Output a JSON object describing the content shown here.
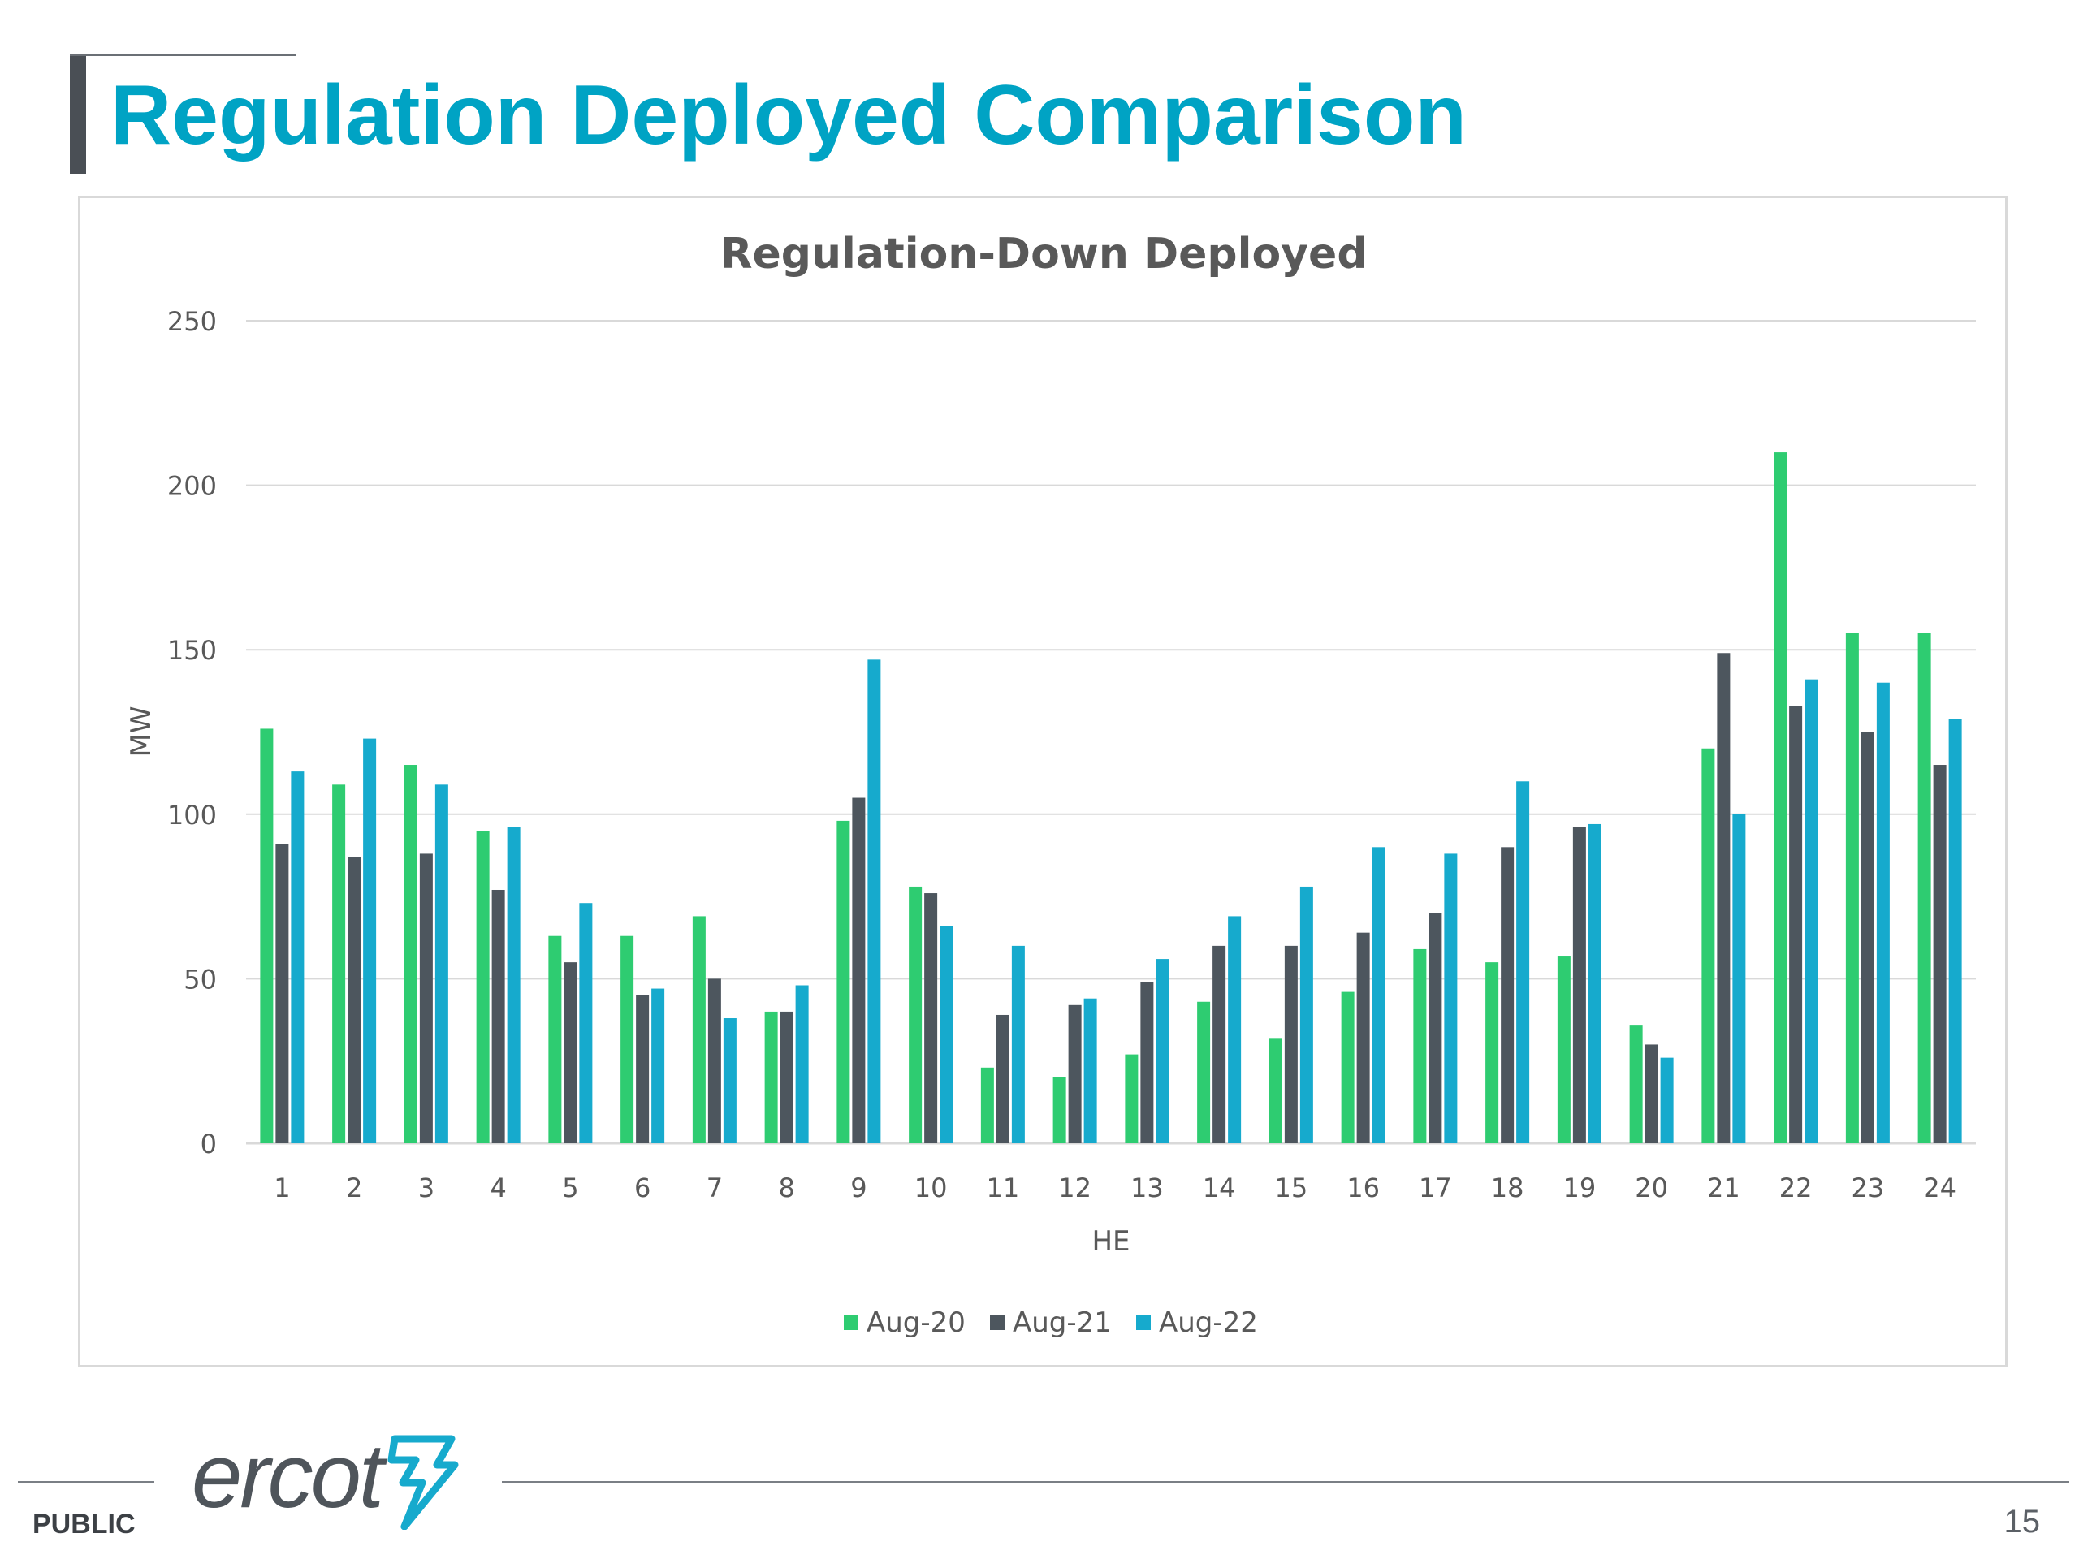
{
  "slide": {
    "title": "Regulation Deployed Comparison",
    "footer_label": "PUBLIC",
    "page_number": "15",
    "logo_text": "ercot"
  },
  "colors": {
    "title": "#00a3c4",
    "aug20": "#2ecc71",
    "aug21": "#4d565e",
    "aug22": "#16aacd",
    "grid": "#d9d9d9",
    "axis_text": "#595959"
  },
  "chart_data": {
    "type": "bar",
    "title": "Regulation-Down Deployed",
    "xlabel": "HE",
    "ylabel": "MW",
    "ylim": [
      0,
      250
    ],
    "yticks": [
      0,
      50,
      100,
      150,
      200,
      250
    ],
    "grid": true,
    "legend_position": "bottom",
    "categories": [
      "1",
      "2",
      "3",
      "4",
      "5",
      "6",
      "7",
      "8",
      "9",
      "10",
      "11",
      "12",
      "13",
      "14",
      "15",
      "16",
      "17",
      "18",
      "19",
      "20",
      "21",
      "22",
      "23",
      "24"
    ],
    "series": [
      {
        "name": "Aug-20",
        "color": "#2ecc71",
        "values": [
          126,
          109,
          115,
          95,
          63,
          63,
          69,
          40,
          98,
          78,
          23,
          20,
          27,
          43,
          32,
          46,
          59,
          55,
          57,
          36,
          120,
          210,
          155,
          155
        ]
      },
      {
        "name": "Aug-21",
        "color": "#4d565e",
        "values": [
          91,
          87,
          88,
          77,
          55,
          45,
          50,
          40,
          105,
          76,
          39,
          42,
          49,
          60,
          60,
          64,
          70,
          90,
          96,
          30,
          149,
          133,
          125,
          115
        ]
      },
      {
        "name": "Aug-22",
        "color": "#16aacd",
        "values": [
          113,
          123,
          109,
          96,
          73,
          47,
          38,
          48,
          147,
          66,
          60,
          44,
          56,
          69,
          78,
          90,
          88,
          110,
          97,
          26,
          100,
          141,
          140,
          129
        ]
      }
    ]
  }
}
